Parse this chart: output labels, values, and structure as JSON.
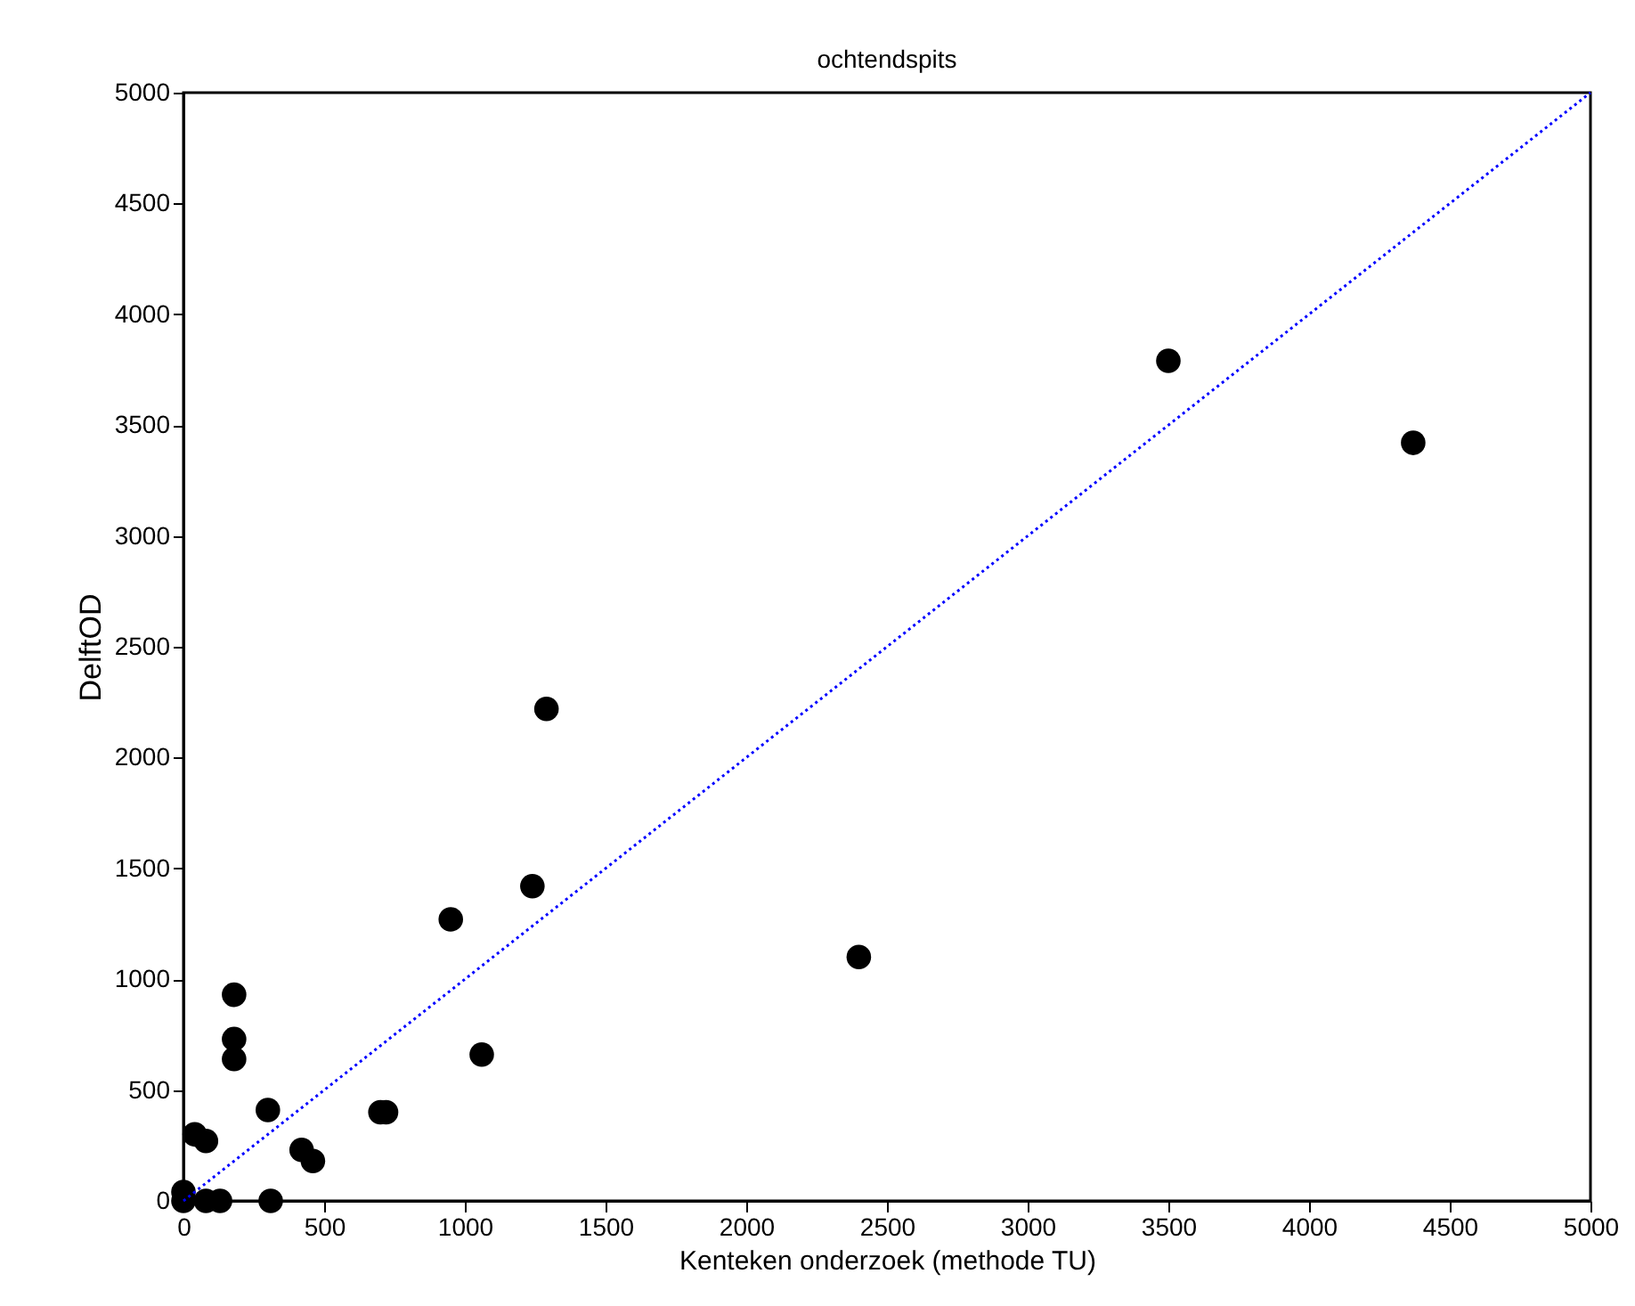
{
  "chart_data": {
    "type": "scatter",
    "title": "ochtendspits",
    "xlabel": "Kenteken onderzoek (methode TU)",
    "ylabel": "DelftOD",
    "xlim": [
      0,
      5000
    ],
    "ylim": [
      0,
      5000
    ],
    "xticks": [
      0,
      500,
      1000,
      1500,
      2000,
      2500,
      3000,
      3500,
      4000,
      4500,
      5000
    ],
    "yticks": [
      0,
      500,
      1000,
      1500,
      2000,
      2500,
      3000,
      3500,
      4000,
      4500,
      5000
    ],
    "grid": false,
    "series": [
      {
        "color": "#000000",
        "marker": "circle",
        "x": [
          0,
          0,
          80,
          130,
          310,
          40,
          80,
          180,
          180,
          180,
          300,
          420,
          460,
          700,
          720,
          950,
          1060,
          1240,
          1290,
          2400,
          3500,
          4370
        ],
        "values": [
          40,
          0,
          0,
          0,
          0,
          300,
          270,
          930,
          730,
          640,
          410,
          230,
          180,
          400,
          400,
          1270,
          660,
          1420,
          2220,
          1100,
          3790,
          3420
        ]
      },
      {
        "type": "line",
        "color": "#0000ff",
        "line_style": "dotted",
        "x": [
          0,
          5000
        ],
        "values": [
          0,
          5000
        ]
      }
    ]
  }
}
